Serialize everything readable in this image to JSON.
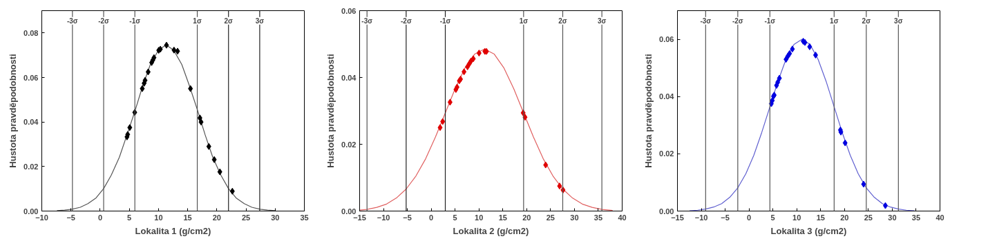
{
  "chart_data": [
    {
      "type": "scatter",
      "xlabel": "Lokalita 1 (g/cm2)",
      "ylabel": "Hustota pravděpodobnosti",
      "xlim": [
        -10,
        35
      ],
      "ylim": [
        0,
        0.09
      ],
      "xticks": [
        -10,
        -5,
        0,
        5,
        10,
        15,
        20,
        25,
        30,
        35
      ],
      "yticks": [
        {
          "value": 0,
          "label": "0.00"
        },
        {
          "value": 0.02,
          "label": "0.02"
        },
        {
          "value": 0.04,
          "label": "0.04"
        },
        {
          "value": 0.06,
          "label": "0.06"
        },
        {
          "value": 0.08,
          "label": "0.08"
        }
      ],
      "grid": false,
      "series": [
        {
          "type": "line",
          "color": "#555555",
          "marker": "none",
          "x": [
            -7.4,
            -6.1,
            -4.8,
            -3.4,
            -2.1,
            -0.7,
            0.6,
            1.9,
            3.3,
            4.6,
            6.0,
            7.3,
            8.6,
            10.0,
            11.3,
            12.6,
            14.0,
            15.3,
            16.7,
            18.0,
            19.3,
            20.7,
            22.0,
            23.3,
            24.7,
            26.0,
            27.4,
            28.7,
            30.0
          ],
          "values": [
            0.0002,
            0.0004,
            0.0008,
            0.0017,
            0.0033,
            0.0059,
            0.0101,
            0.0161,
            0.0242,
            0.0342,
            0.0452,
            0.0563,
            0.0658,
            0.0723,
            0.0746,
            0.0723,
            0.0658,
            0.0563,
            0.0452,
            0.0342,
            0.0242,
            0.0161,
            0.0101,
            0.0059,
            0.0033,
            0.0017,
            0.0008,
            0.0004,
            0.0002
          ]
        },
        {
          "type": "scatter",
          "color": "#000000",
          "marker": "diamond",
          "x": [
            4.6,
            4.72,
            5.08,
            5.93,
            7.22,
            7.54,
            7.7,
            8.23,
            8.83,
            9.03,
            9.23,
            10.04,
            10.32,
            11.37,
            12.66,
            13.27,
            15.48,
            17.1,
            17.3,
            18.63,
            19.56,
            20.52,
            22.66
          ],
          "values": [
            0.0333,
            0.0344,
            0.0375,
            0.0443,
            0.055,
            0.0574,
            0.0587,
            0.0625,
            0.0667,
            0.0678,
            0.0689,
            0.0722,
            0.0727,
            0.0745,
            0.0723,
            0.0718,
            0.055,
            0.0418,
            0.04,
            0.029,
            0.0231,
            0.0176,
            0.0089
          ]
        }
      ],
      "ref_lines": [
        {
          "axis": "x",
          "value": -4.75,
          "label": "-3σ",
          "color": "#555555"
        },
        {
          "axis": "x",
          "value": 0.6,
          "label": "-2σ",
          "color": "#555555"
        },
        {
          "axis": "x",
          "value": 5.95,
          "label": "-1σ",
          "color": "#555555"
        },
        {
          "axis": "x",
          "value": 16.65,
          "label": "1σ",
          "color": "#555555"
        },
        {
          "axis": "x",
          "value": 22.0,
          "label": "2σ",
          "color": "#222222"
        },
        {
          "axis": "x",
          "value": 27.35,
          "label": "3σ",
          "color": "#222222"
        }
      ]
    },
    {
      "type": "scatter",
      "xlabel": "Lokalita 2 (g/cm2)",
      "ylabel": "Hustota pravděpodobnosti",
      "xlim": [
        -15,
        40
      ],
      "ylim": [
        0,
        0.06
      ],
      "xticks": [
        -15,
        -10,
        -5,
        0,
        5,
        10,
        15,
        20,
        25,
        30,
        35,
        40
      ],
      "yticks": [
        {
          "value": 0,
          "label": "0.00"
        },
        {
          "value": 0.02,
          "label": "0.02"
        },
        {
          "value": 0.04,
          "label": "0.04"
        },
        {
          "value": 0.06,
          "label": "0.06"
        }
      ],
      "grid": false,
      "series": [
        {
          "type": "line",
          "color": "#e06060",
          "marker": "none",
          "x": [
            -15,
            -13.45,
            -11.4,
            -9.35,
            -7.3,
            -5.25,
            -3.2,
            -1.15,
            0.9,
            2.95,
            5.0,
            7.05,
            9.1,
            11.15,
            13.2,
            15.25,
            17.3,
            19.35,
            21.4,
            23.45,
            25.5,
            27.55,
            29.6,
            31.65,
            33.7,
            35.75,
            38
          ],
          "values": [
            0.0003,
            0.0005,
            0.0011,
            0.0021,
            0.0039,
            0.0066,
            0.0105,
            0.0157,
            0.0222,
            0.0294,
            0.0366,
            0.0428,
            0.047,
            0.0485,
            0.047,
            0.0428,
            0.0366,
            0.0294,
            0.0222,
            0.0157,
            0.0105,
            0.0066,
            0.0039,
            0.0021,
            0.0011,
            0.0005,
            0.0002
          ]
        },
        {
          "type": "scatter",
          "color": "#e00000",
          "marker": "diamond",
          "x": [
            1.86,
            2.4,
            3.95,
            5.17,
            5.41,
            5.89,
            6.14,
            6.87,
            7.6,
            7.98,
            8.32,
            8.81,
            10.02,
            11.24,
            11.58,
            19.26,
            19.65,
            23.97,
            26.89,
            27.61
          ],
          "values": [
            0.025,
            0.0268,
            0.0326,
            0.0364,
            0.0371,
            0.039,
            0.0395,
            0.0417,
            0.0432,
            0.0441,
            0.0449,
            0.0456,
            0.0473,
            0.0478,
            0.0478,
            0.0294,
            0.0281,
            0.0138,
            0.0075,
            0.0063
          ]
        }
      ],
      "ref_lines": [
        {
          "axis": "x",
          "value": -13.45,
          "label": "-3σ",
          "color": "#555555"
        },
        {
          "axis": "x",
          "value": -5.25,
          "label": "-2σ",
          "color": "#222222"
        },
        {
          "axis": "x",
          "value": 2.95,
          "label": "-1σ",
          "color": "#222222"
        },
        {
          "axis": "x",
          "value": 19.35,
          "label": "1σ",
          "color": "#555555"
        },
        {
          "axis": "x",
          "value": 27.55,
          "label": "2σ",
          "color": "#555555"
        },
        {
          "axis": "x",
          "value": 35.75,
          "label": "3σ",
          "color": "#555555"
        }
      ]
    },
    {
      "type": "scatter",
      "xlabel": "Lokalita 3 (g/cm2)",
      "ylabel": "Hustota pravděpodobnosti",
      "xlim": [
        -15,
        40
      ],
      "ylim": [
        0,
        0.07
      ],
      "xticks": [
        -15,
        -10,
        -5,
        0,
        5,
        10,
        15,
        20,
        25,
        30,
        35,
        40
      ],
      "yticks": [
        {
          "value": 0,
          "label": "0.00"
        },
        {
          "value": 0.02,
          "label": "0.02"
        },
        {
          "value": 0.04,
          "label": "0.04"
        },
        {
          "value": 0.06,
          "label": "0.06"
        }
      ],
      "grid": false,
      "series": [
        {
          "type": "line",
          "color": "#6060d0",
          "marker": "none",
          "x": [
            -12.46,
            -10.77,
            -9.09,
            -7.41,
            -5.73,
            -4.04,
            -2.36,
            -0.68,
            1.0,
            2.67,
            4.37,
            6.05,
            7.73,
            9.42,
            11.1,
            12.78,
            14.47,
            16.15,
            17.83,
            19.51,
            21.2,
            22.88,
            24.56,
            26.24,
            27.93,
            29.61,
            31.29,
            32.97,
            34.66
          ],
          "values": [
            0.0001,
            0.0003,
            0.0007,
            0.0014,
            0.0026,
            0.0048,
            0.0081,
            0.013,
            0.0195,
            0.0275,
            0.0364,
            0.0453,
            0.053,
            0.0582,
            0.06,
            0.0582,
            0.053,
            0.0453,
            0.0364,
            0.0275,
            0.0195,
            0.013,
            0.0081,
            0.0048,
            0.0026,
            0.0014,
            0.0007,
            0.0003,
            0.0001
          ]
        },
        {
          "type": "scatter",
          "color": "#0000e0",
          "marker": "diamond",
          "x": [
            4.67,
            4.87,
            5.12,
            5.27,
            5.76,
            6.01,
            6.36,
            7.75,
            8.09,
            8.49,
            9.08,
            11.36,
            11.71,
            12.7,
            13.94,
            19.14,
            19.24,
            20.13,
            24.0,
            28.56
          ],
          "values": [
            0.0375,
            0.0386,
            0.0401,
            0.0405,
            0.0439,
            0.045,
            0.0464,
            0.053,
            0.054,
            0.055,
            0.0566,
            0.0593,
            0.0589,
            0.0574,
            0.0545,
            0.0283,
            0.0276,
            0.0238,
            0.0094,
            0.0019
          ]
        }
      ],
      "ref_lines": [
        {
          "axis": "x",
          "value": -9.09,
          "label": "-3σ",
          "color": "#555555"
        },
        {
          "axis": "x",
          "value": -2.36,
          "label": "-2σ",
          "color": "#555555"
        },
        {
          "axis": "x",
          "value": 4.37,
          "label": "-1σ",
          "color": "#555555"
        },
        {
          "axis": "x",
          "value": 17.83,
          "label": "1σ",
          "color": "#555555"
        },
        {
          "axis": "x",
          "value": 24.56,
          "label": "2σ",
          "color": "#555555"
        },
        {
          "axis": "x",
          "value": 31.29,
          "label": "3σ",
          "color": "#555555"
        }
      ]
    }
  ]
}
